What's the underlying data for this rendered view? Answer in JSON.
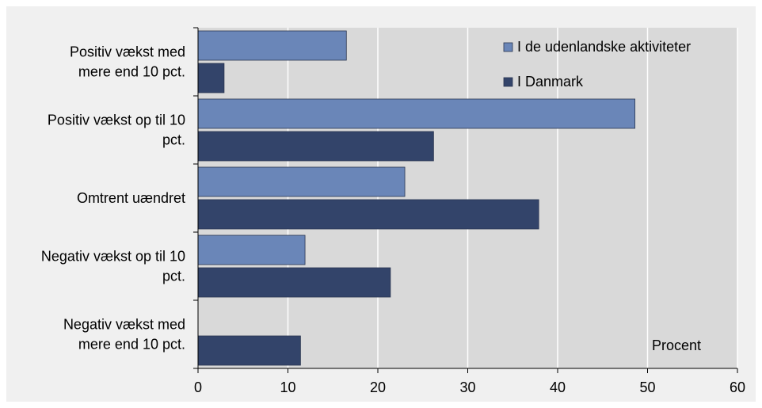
{
  "chart_data": {
    "type": "bar",
    "orientation": "horizontal",
    "categories": [
      [
        "Positiv vækst med",
        "mere end 10 pct."
      ],
      [
        "Positiv vækst op til 10",
        "pct."
      ],
      [
        "Omtrent uændret"
      ],
      [
        "Negativ vækst op til 10",
        "pct."
      ],
      [
        "Negativ vækst med",
        "mere end 10 pct."
      ]
    ],
    "series": [
      {
        "name": "I de udenlandske aktiviteter",
        "values": [
          16.5,
          48.6,
          23.0,
          11.9,
          0.0
        ],
        "color": "#6a86b8"
      },
      {
        "name": "I Danmark",
        "values": [
          2.9,
          26.2,
          37.9,
          21.4,
          11.4
        ],
        "color": "#33446a"
      }
    ],
    "xlim": [
      0,
      60
    ],
    "xticks": [
      0,
      10,
      20,
      30,
      40,
      50,
      60
    ],
    "unit_label": "Procent",
    "grid": true,
    "legend_position": "top-right",
    "colors": {
      "outer_background": "#f0f0f0",
      "plot_background": "#d9d9d9",
      "gridline": "#ffffff"
    }
  }
}
